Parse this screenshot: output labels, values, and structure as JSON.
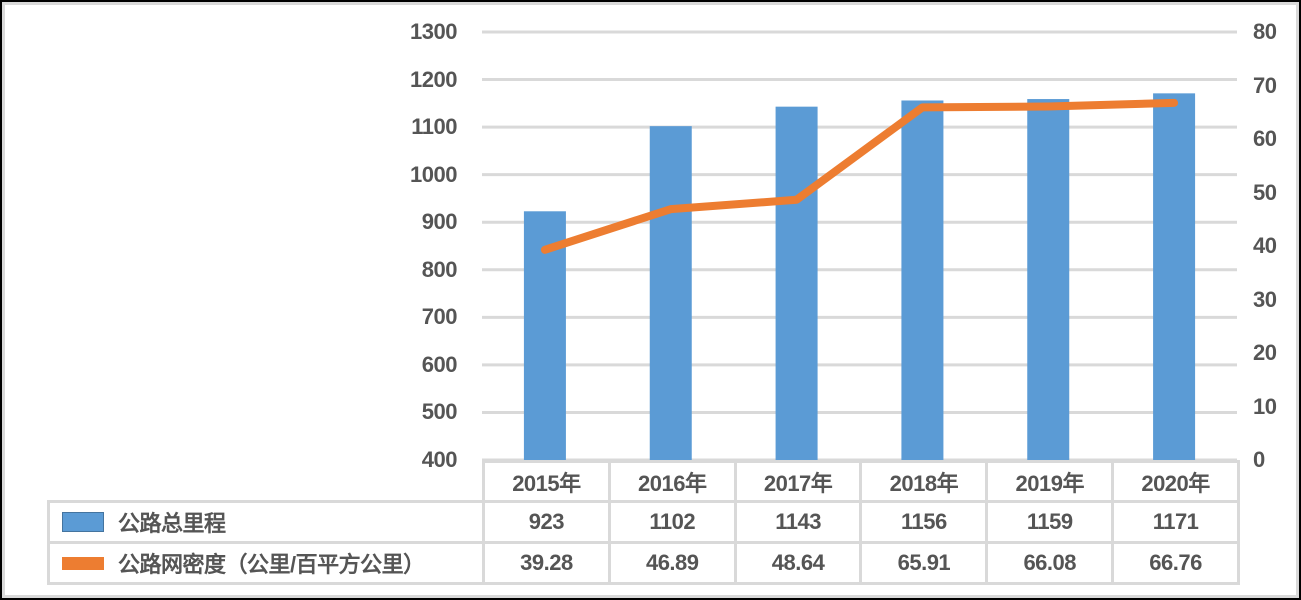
{
  "frame": {
    "outer_border_color": "#000000",
    "inner_border_color": "#d9d9d9",
    "background": "#ffffff",
    "text_color": "#555555"
  },
  "chart_data": {
    "type": "bar",
    "subtype": "combo-bar-line-with-data-table",
    "title": "",
    "xlabel": "",
    "ylabel": "",
    "categories": [
      "2015年",
      "2016年",
      "2017年",
      "2018年",
      "2019年",
      "2020年"
    ],
    "series": [
      {
        "name": "公路总里程",
        "type": "bar",
        "axis": "left",
        "color": "#5b9bd5",
        "values": [
          923,
          1102,
          1143,
          1156,
          1159,
          1171
        ]
      },
      {
        "name": "公路网密度（公里/百平方公里）",
        "type": "line",
        "axis": "right",
        "color": "#ed7d31",
        "values": [
          39.28,
          46.89,
          48.64,
          65.91,
          66.08,
          66.76
        ]
      }
    ],
    "left_axis": {
      "min": 400,
      "max": 1300,
      "step": 100,
      "ticks": [
        400,
        500,
        600,
        700,
        800,
        900,
        1000,
        1100,
        1200,
        1300
      ]
    },
    "right_axis": {
      "min": 0,
      "max": 80,
      "step": 10,
      "ticks": [
        0,
        10,
        20,
        30,
        40,
        50,
        60,
        70,
        80
      ]
    },
    "grid": true,
    "gridline_color": "#d9d9d9",
    "legend_position": "data-table-left"
  }
}
